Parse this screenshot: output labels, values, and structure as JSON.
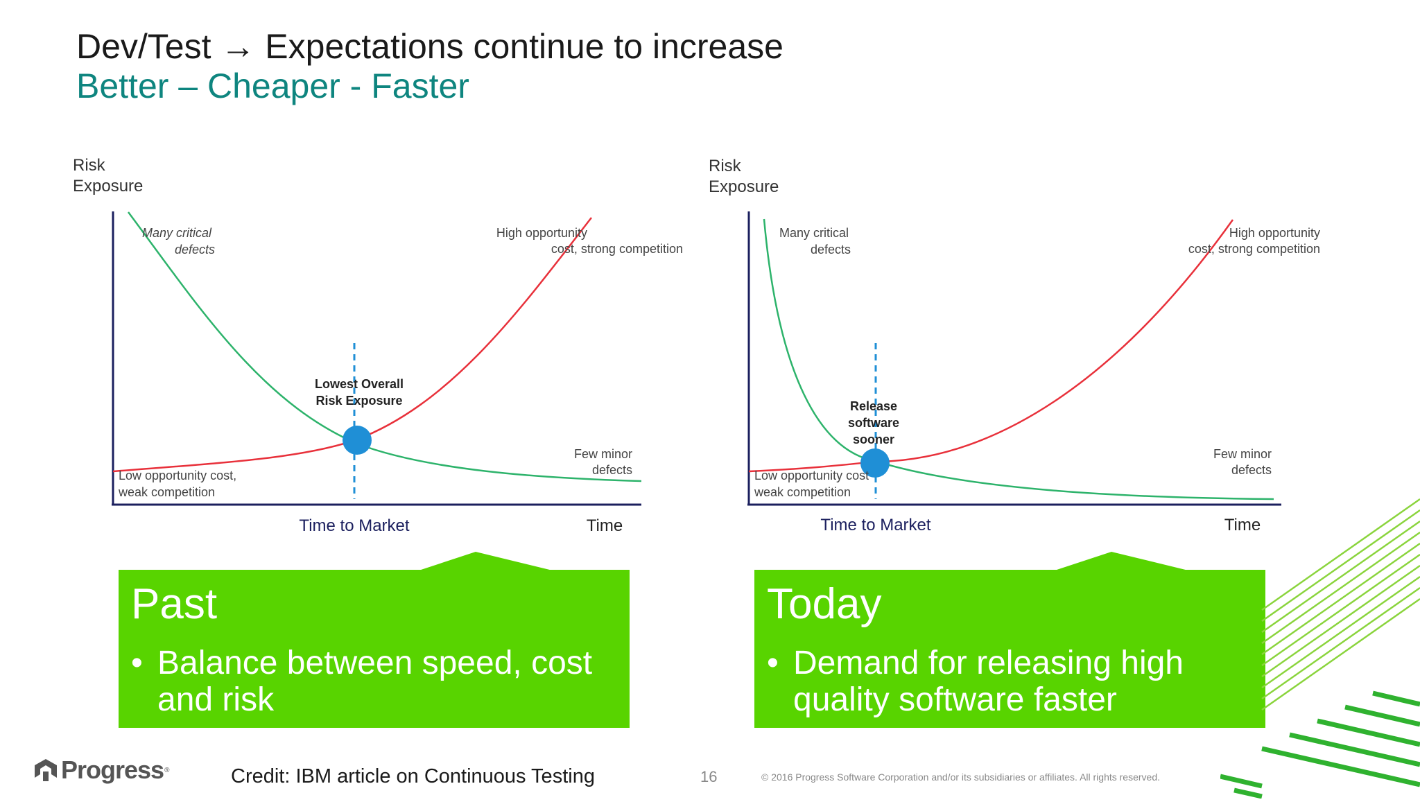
{
  "slide": {
    "title": "Dev/Test → Expectations continue to increase",
    "subtitle": "Better – Cheaper - Faster"
  },
  "charts": [
    {
      "id": "past",
      "y_axis_label_line1": "Risk",
      "y_axis_label_line2": "Exposure",
      "x_axis_label": "Time to Market",
      "x_axis_end_label": "Time",
      "annotation_top_left_1": "Many critical",
      "annotation_top_left_2": "defects",
      "annotation_top_right_1": "High opportunity",
      "annotation_top_right_2": "cost, strong competition",
      "annotation_center_1": "Lowest Overall",
      "annotation_center_2": "Risk Exposure",
      "annotation_center_3": "",
      "annotation_bottom_left_1": "Low opportunity  cost,",
      "annotation_bottom_left_2": "weak competition",
      "annotation_bottom_right_1": "Few minor",
      "annotation_bottom_right_2": "defects"
    },
    {
      "id": "today",
      "y_axis_label_line1": "Risk",
      "y_axis_label_line2": "Exposure",
      "x_axis_label": "Time to Market",
      "x_axis_end_label": "Time",
      "annotation_top_left_1": "Many critical",
      "annotation_top_left_2": "defects",
      "annotation_top_right_1": "High opportunity",
      "annotation_top_right_2": "cost, strong competition",
      "annotation_center_1": "Release",
      "annotation_center_2": "software",
      "annotation_center_3": "sooner",
      "annotation_bottom_left_1": "Low opportunity  cost",
      "annotation_bottom_left_2": "weak competition",
      "annotation_bottom_right_1": "Few minor",
      "annotation_bottom_right_2": "defects"
    }
  ],
  "boxes": {
    "past": {
      "title": "Past",
      "bullet": "Balance between speed, cost and risk"
    },
    "today": {
      "title": "Today",
      "bullet": "Demand for releasing high quality software faster"
    }
  },
  "footer": {
    "logo_text": "Progress",
    "credit": "Credit: IBM article on Continuous Testing",
    "page_number": "16",
    "copyright": "© 2016 Progress Software Corporation and/or its subsidiaries or affiliates. All rights reserved."
  },
  "colors": {
    "title": "#1a1a1a",
    "subtitle": "#0e857f",
    "defect_curve": "#2db36b",
    "opportunity_curve": "#e8303a",
    "intersection_marker": "#1f8fd6",
    "axis": "#1b1f5e",
    "box_fill": "#58d400"
  }
}
